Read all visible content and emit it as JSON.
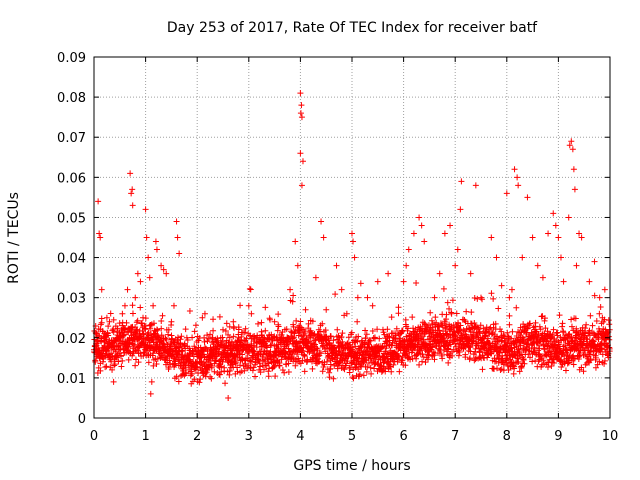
{
  "chart_data": {
    "type": "scatter",
    "title": "Day 253 of 2017, Rate Of TEC Index for receiver batf",
    "xlabel": "GPS time / hours",
    "ylabel": "ROTI / TECUs",
    "xlim": [
      0,
      10
    ],
    "ylim": [
      0,
      0.09
    ],
    "xticks": [
      "0",
      "1",
      "2",
      "3",
      "4",
      "5",
      "6",
      "7",
      "8",
      "9",
      "10"
    ],
    "yticks": [
      "0",
      "0.01",
      "0.02",
      "0.03",
      "0.04",
      "0.05",
      "0.06",
      "0.07",
      "0.08",
      "0.09"
    ],
    "grid": true,
    "marker": "plus",
    "color": "#ff0000",
    "series": [
      {
        "points": [
          [
            0.08,
            0.054
          ],
          [
            0.1,
            0.046
          ],
          [
            0.12,
            0.045
          ],
          [
            0.15,
            0.032
          ],
          [
            0.05,
            0.018
          ],
          [
            0.1,
            0.016
          ],
          [
            0.2,
            0.021
          ],
          [
            0.25,
            0.025
          ],
          [
            0.3,
            0.024
          ],
          [
            0.35,
            0.012
          ],
          [
            0.38,
            0.009
          ],
          [
            0.45,
            0.02
          ],
          [
            0.5,
            0.018
          ],
          [
            0.55,
            0.026
          ],
          [
            0.6,
            0.028
          ],
          [
            0.65,
            0.032
          ],
          [
            0.7,
            0.061
          ],
          [
            0.72,
            0.056
          ],
          [
            0.74,
            0.057
          ],
          [
            0.75,
            0.053
          ],
          [
            0.8,
            0.03
          ],
          [
            0.85,
            0.036
          ],
          [
            0.9,
            0.034
          ],
          [
            0.95,
            0.025
          ],
          [
            1.0,
            0.052
          ],
          [
            1.02,
            0.045
          ],
          [
            1.05,
            0.04
          ],
          [
            1.08,
            0.035
          ],
          [
            1.1,
            0.006
          ],
          [
            1.12,
            0.009
          ],
          [
            1.15,
            0.013
          ],
          [
            1.2,
            0.044
          ],
          [
            1.22,
            0.042
          ],
          [
            1.3,
            0.038
          ],
          [
            1.35,
            0.037
          ],
          [
            1.4,
            0.036
          ],
          [
            1.45,
            0.022
          ],
          [
            1.5,
            0.024
          ],
          [
            1.55,
            0.028
          ],
          [
            1.6,
            0.049
          ],
          [
            1.62,
            0.045
          ],
          [
            1.65,
            0.041
          ],
          [
            1.7,
            0.013
          ],
          [
            1.75,
            0.018
          ],
          [
            1.8,
            0.02
          ],
          [
            1.9,
            0.011
          ],
          [
            2.0,
            0.016
          ],
          [
            2.05,
            0.014
          ],
          [
            2.1,
            0.025
          ],
          [
            2.15,
            0.026
          ],
          [
            2.2,
            0.012
          ],
          [
            2.3,
            0.02
          ],
          [
            2.4,
            0.018
          ],
          [
            2.5,
            0.022
          ],
          [
            2.6,
            0.005
          ],
          [
            2.65,
            0.014
          ],
          [
            2.7,
            0.024
          ],
          [
            2.8,
            0.02
          ],
          [
            2.9,
            0.013
          ],
          [
            3.0,
            0.028
          ],
          [
            3.05,
            0.026
          ],
          [
            3.1,
            0.018
          ],
          [
            3.2,
            0.012
          ],
          [
            3.3,
            0.02
          ],
          [
            3.4,
            0.016
          ],
          [
            3.5,
            0.024
          ],
          [
            3.6,
            0.013
          ],
          [
            3.7,
            0.022
          ],
          [
            3.8,
            0.032
          ],
          [
            3.85,
            0.029
          ],
          [
            3.9,
            0.044
          ],
          [
            3.95,
            0.038
          ],
          [
            4.0,
            0.081
          ],
          [
            4.02,
            0.078
          ],
          [
            4.01,
            0.076
          ],
          [
            4.03,
            0.075
          ],
          [
            4.0,
            0.066
          ],
          [
            4.05,
            0.064
          ],
          [
            4.03,
            0.058
          ],
          [
            4.1,
            0.027
          ],
          [
            4.2,
            0.02
          ],
          [
            4.3,
            0.035
          ],
          [
            4.4,
            0.049
          ],
          [
            4.45,
            0.045
          ],
          [
            4.5,
            0.027
          ],
          [
            4.6,
            0.017
          ],
          [
            4.7,
            0.038
          ],
          [
            4.8,
            0.032
          ],
          [
            4.9,
            0.026
          ],
          [
            5.0,
            0.046
          ],
          [
            5.02,
            0.044
          ],
          [
            5.05,
            0.04
          ],
          [
            5.1,
            0.024
          ],
          [
            5.2,
            0.018
          ],
          [
            5.3,
            0.03
          ],
          [
            5.4,
            0.028
          ],
          [
            5.5,
            0.034
          ],
          [
            5.6,
            0.022
          ],
          [
            5.7,
            0.036
          ],
          [
            5.8,
            0.02
          ],
          [
            5.9,
            0.018
          ],
          [
            6.0,
            0.034
          ],
          [
            6.05,
            0.038
          ],
          [
            6.1,
            0.042
          ],
          [
            6.2,
            0.046
          ],
          [
            6.3,
            0.05
          ],
          [
            6.35,
            0.048
          ],
          [
            6.4,
            0.044
          ],
          [
            6.5,
            0.022
          ],
          [
            6.6,
            0.03
          ],
          [
            6.7,
            0.036
          ],
          [
            6.8,
            0.046
          ],
          [
            6.9,
            0.048
          ],
          [
            7.0,
            0.038
          ],
          [
            7.05,
            0.042
          ],
          [
            7.1,
            0.052
          ],
          [
            7.12,
            0.059
          ],
          [
            7.2,
            0.024
          ],
          [
            7.3,
            0.036
          ],
          [
            7.4,
            0.058
          ],
          [
            7.5,
            0.03
          ],
          [
            7.6,
            0.022
          ],
          [
            7.7,
            0.045
          ],
          [
            7.8,
            0.04
          ],
          [
            7.9,
            0.033
          ],
          [
            8.0,
            0.056
          ],
          [
            8.05,
            0.03
          ],
          [
            8.1,
            0.032
          ],
          [
            8.15,
            0.062
          ],
          [
            8.2,
            0.06
          ],
          [
            8.22,
            0.058
          ],
          [
            8.3,
            0.04
          ],
          [
            8.4,
            0.055
          ],
          [
            8.5,
            0.045
          ],
          [
            8.6,
            0.038
          ],
          [
            8.7,
            0.035
          ],
          [
            8.8,
            0.046
          ],
          [
            8.9,
            0.051
          ],
          [
            8.95,
            0.048
          ],
          [
            9.0,
            0.045
          ],
          [
            9.05,
            0.04
          ],
          [
            9.1,
            0.034
          ],
          [
            9.2,
            0.05
          ],
          [
            9.22,
            0.068
          ],
          [
            9.25,
            0.069
          ],
          [
            9.28,
            0.067
          ],
          [
            9.3,
            0.062
          ],
          [
            9.32,
            0.057
          ],
          [
            9.35,
            0.038
          ],
          [
            9.4,
            0.046
          ],
          [
            9.45,
            0.045
          ],
          [
            9.5,
            0.02
          ],
          [
            9.6,
            0.034
          ],
          [
            9.7,
            0.039
          ],
          [
            9.8,
            0.03
          ],
          [
            9.9,
            0.032
          ],
          [
            9.95,
            0.018
          ]
        ],
        "band": {
          "step_hours": 0.0083,
          "profile": [
            [
              0.0,
              0.017
            ],
            [
              0.5,
              0.019
            ],
            [
              1.0,
              0.02
            ],
            [
              1.5,
              0.016
            ],
            [
              2.0,
              0.014
            ],
            [
              2.5,
              0.016
            ],
            [
              3.0,
              0.017
            ],
            [
              3.5,
              0.017
            ],
            [
              4.0,
              0.019
            ],
            [
              4.5,
              0.017
            ],
            [
              5.0,
              0.016
            ],
            [
              5.5,
              0.016
            ],
            [
              6.0,
              0.018
            ],
            [
              6.5,
              0.019
            ],
            [
              7.0,
              0.02
            ],
            [
              7.5,
              0.019
            ],
            [
              8.0,
              0.016
            ],
            [
              8.5,
              0.019
            ],
            [
              9.0,
              0.017
            ],
            [
              9.5,
              0.018
            ],
            [
              10.0,
              0.019
            ]
          ],
          "spread": 0.006
        }
      }
    ]
  }
}
